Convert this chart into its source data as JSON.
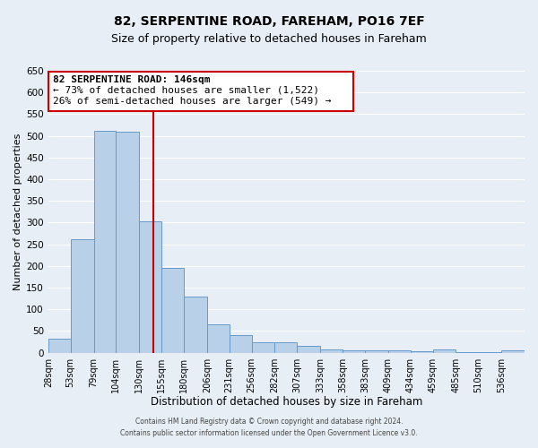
{
  "title": "82, SERPENTINE ROAD, FAREHAM, PO16 7EF",
  "subtitle": "Size of property relative to detached houses in Fareham",
  "xlabel": "Distribution of detached houses by size in Fareham",
  "ylabel": "Number of detached properties",
  "bar_color": "#b8d0e8",
  "bar_edge_color": "#6699cc",
  "background_color": "#e8eef5",
  "grid_color": "#ffffff",
  "categories": [
    "28sqm",
    "53sqm",
    "79sqm",
    "104sqm",
    "130sqm",
    "155sqm",
    "180sqm",
    "206sqm",
    "231sqm",
    "256sqm",
    "282sqm",
    "307sqm",
    "333sqm",
    "358sqm",
    "383sqm",
    "409sqm",
    "434sqm",
    "459sqm",
    "485sqm",
    "510sqm",
    "536sqm"
  ],
  "values": [
    32,
    262,
    512,
    510,
    302,
    196,
    130,
    65,
    40,
    23,
    23,
    15,
    8,
    5,
    5,
    5,
    3,
    8,
    2,
    2,
    5
  ],
  "bin_edges": [
    28,
    53,
    79,
    104,
    130,
    155,
    180,
    206,
    231,
    256,
    282,
    307,
    333,
    358,
    383,
    409,
    434,
    459,
    485,
    510,
    536,
    562
  ],
  "ylim": [
    0,
    650
  ],
  "yticks": [
    0,
    50,
    100,
    150,
    200,
    250,
    300,
    350,
    400,
    450,
    500,
    550,
    600,
    650
  ],
  "vline_x": 146,
  "vline_color": "#cc0000",
  "annotation_title": "82 SERPENTINE ROAD: 146sqm",
  "annotation_line1": "← 73% of detached houses are smaller (1,522)",
  "annotation_line2": "26% of semi-detached houses are larger (549) →",
  "annotation_box_color": "#ffffff",
  "annotation_box_edge": "#cc0000",
  "footer1": "Contains HM Land Registry data © Crown copyright and database right 2024.",
  "footer2": "Contains public sector information licensed under the Open Government Licence v3.0."
}
